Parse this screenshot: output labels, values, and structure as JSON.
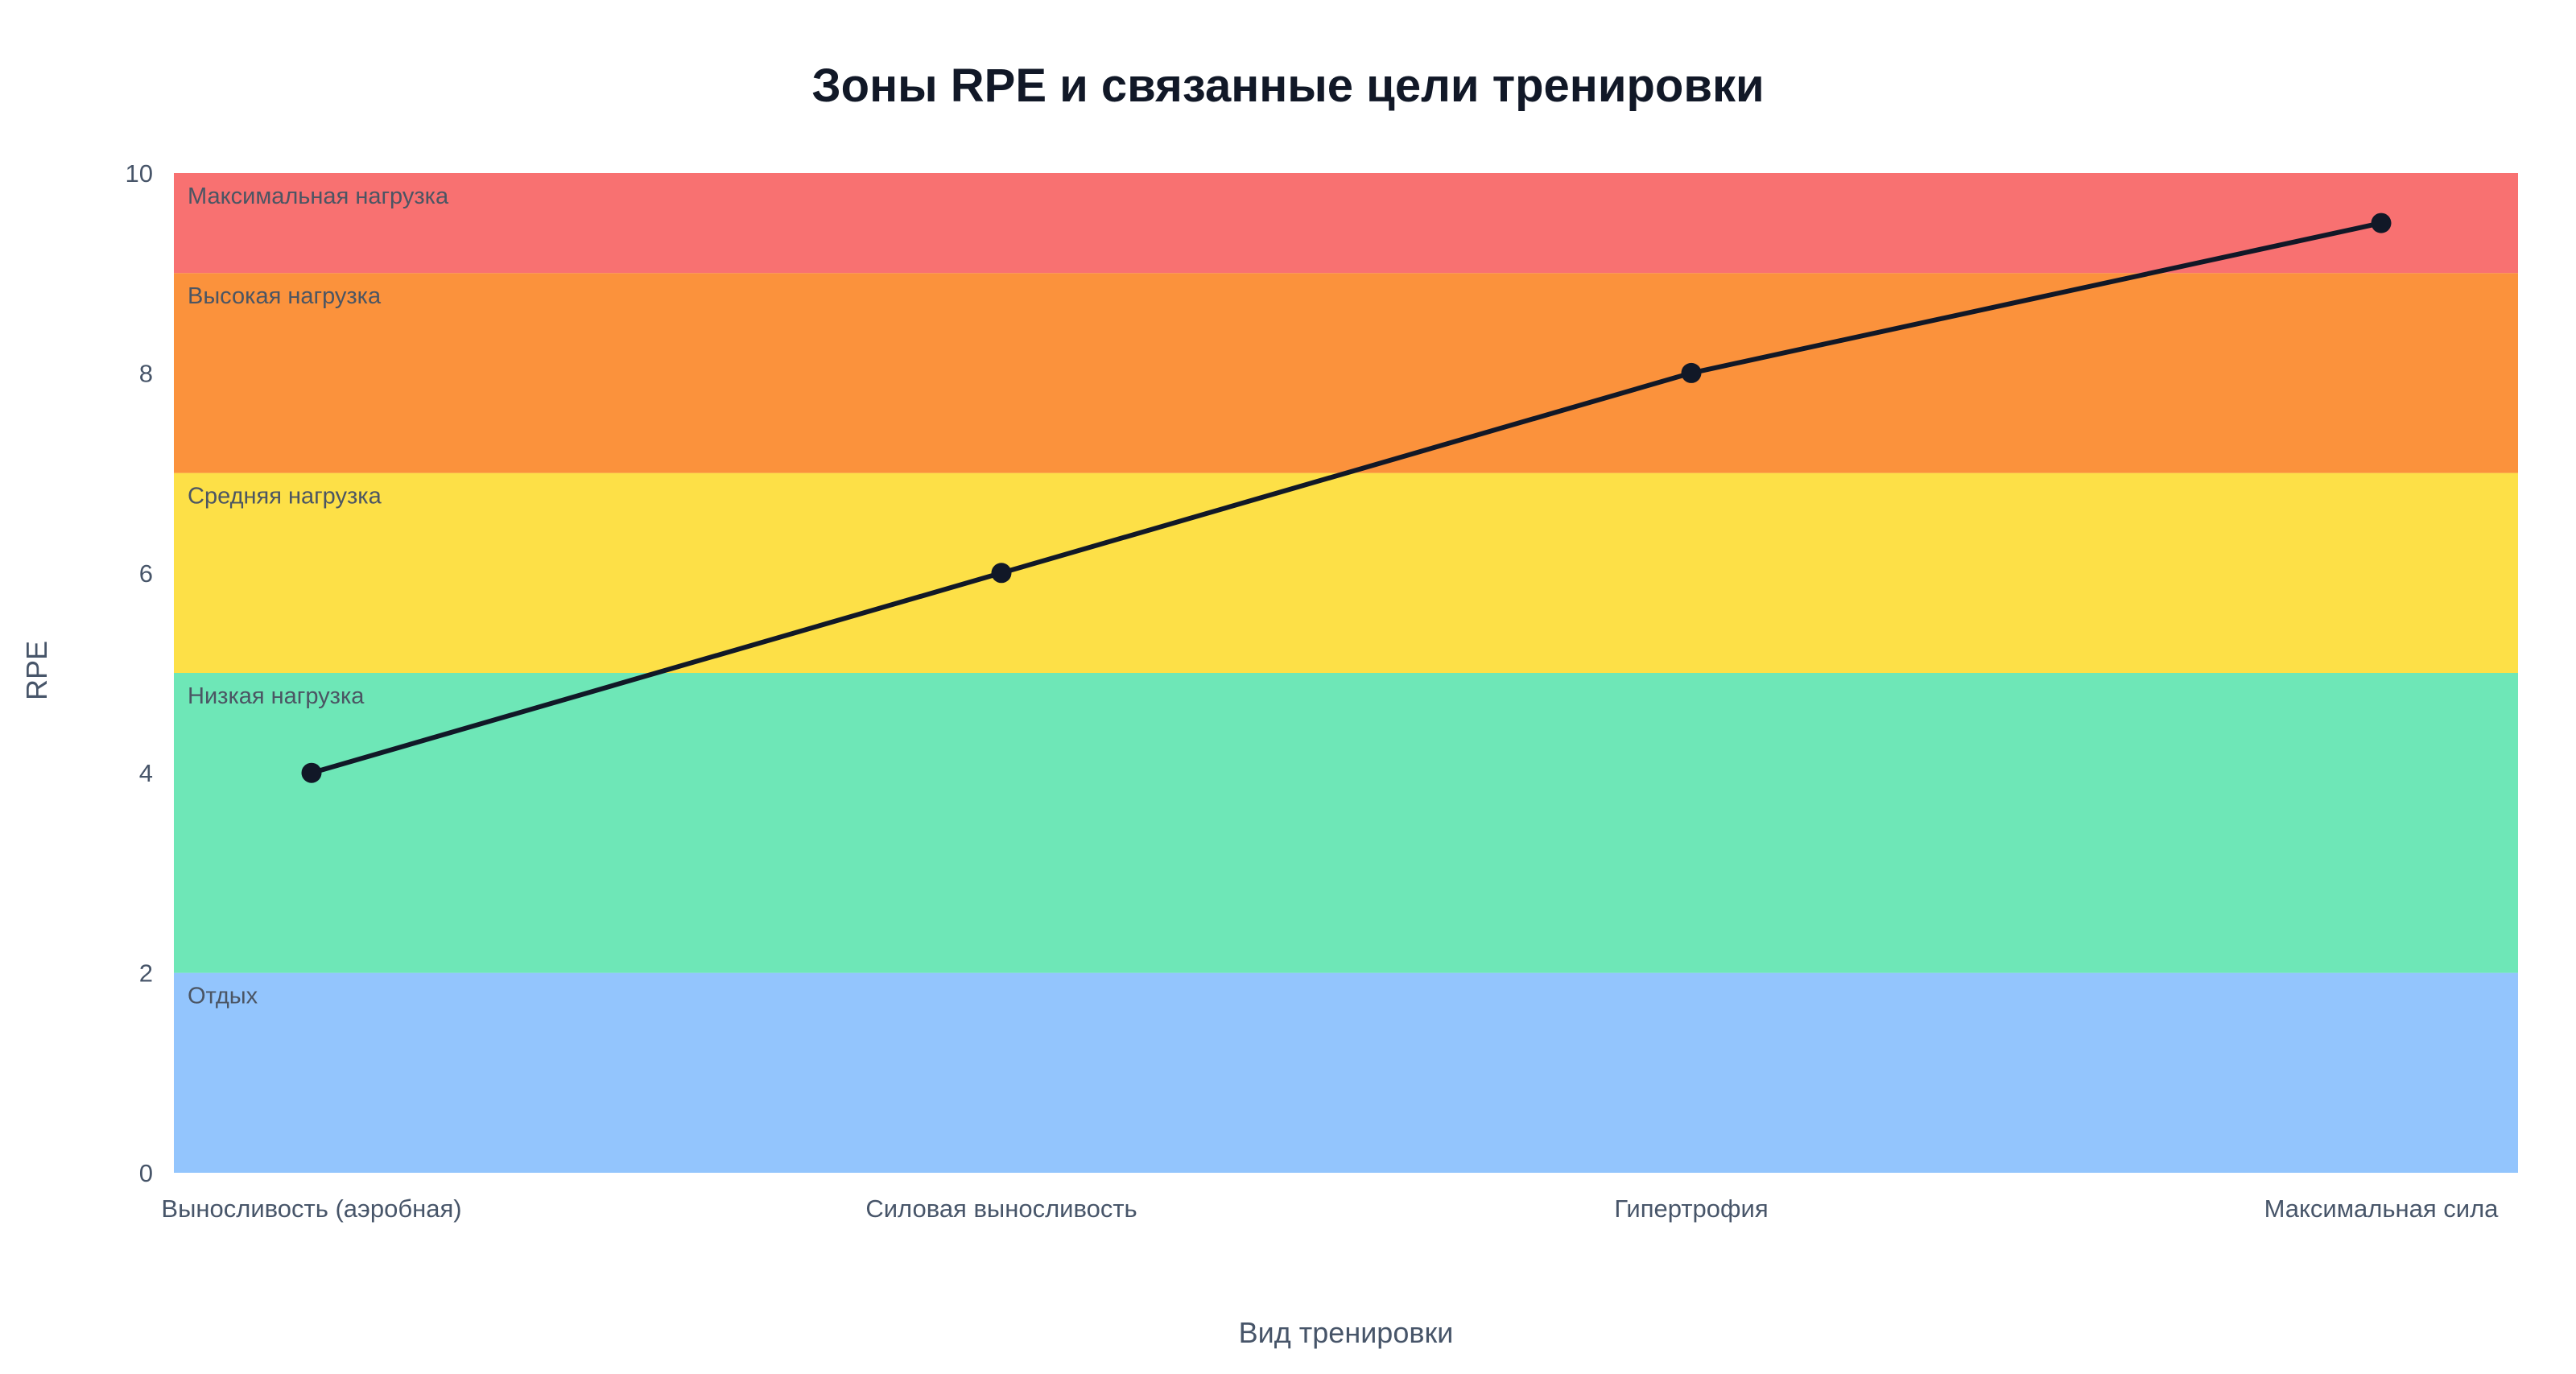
{
  "chart_data": {
    "type": "line",
    "title": "Зоны RPE и связанные цели тренировки",
    "xlabel": "Вид тренировки",
    "ylabel": "RPE",
    "categories": [
      "Выносливость (аэробная)",
      "Силовая выносливость",
      "Гипертрофия",
      "Максимальная сила"
    ],
    "series": [
      {
        "values": [
          4,
          6,
          8,
          9.5
        ],
        "color": "#111827"
      }
    ],
    "ylim": [
      0,
      10
    ],
    "yticks": [
      0,
      2,
      4,
      6,
      8,
      10
    ],
    "grid": false,
    "zones": [
      {
        "label": "Отдых",
        "from": 0,
        "to": 2,
        "color": "#93c5fd"
      },
      {
        "label": "Низкая нагрузка",
        "from": 2,
        "to": 5,
        "color": "#6ee7b7"
      },
      {
        "label": "Средняя нагрузка",
        "from": 5,
        "to": 7,
        "color": "#fde047"
      },
      {
        "label": "Высокая нагрузка",
        "from": 7,
        "to": 9,
        "color": "#fb923c"
      },
      {
        "label": "Максимальная нагрузка",
        "from": 9,
        "to": 10,
        "color": "#f87171"
      }
    ]
  }
}
